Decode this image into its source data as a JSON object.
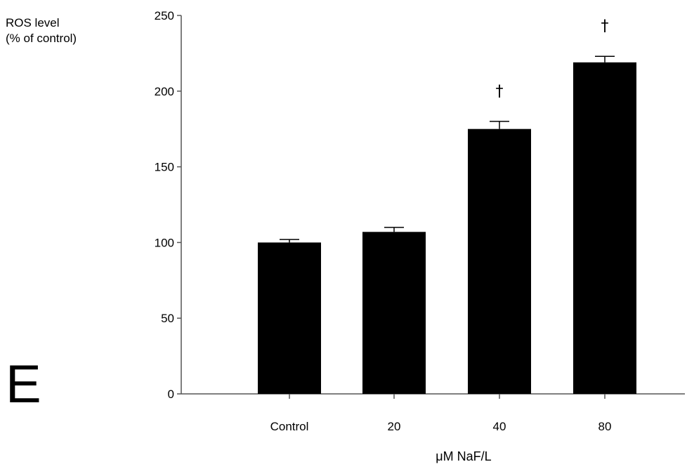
{
  "panel_label": "E",
  "chart_data": {
    "type": "bar",
    "ylabel_lines": [
      "ROS level",
      "(% of control)"
    ],
    "xlabel": "μM NaF/L",
    "ylim": [
      0,
      250
    ],
    "yticks": [
      0,
      50,
      100,
      150,
      200,
      250
    ],
    "categories": [
      "Control",
      "20",
      "40",
      "80"
    ],
    "values": [
      100,
      107,
      175,
      219
    ],
    "errors": [
      2,
      3,
      5,
      4
    ],
    "annotations": [
      "",
      "",
      "†",
      "†"
    ],
    "bar_color": "#000000",
    "grid": false
  }
}
